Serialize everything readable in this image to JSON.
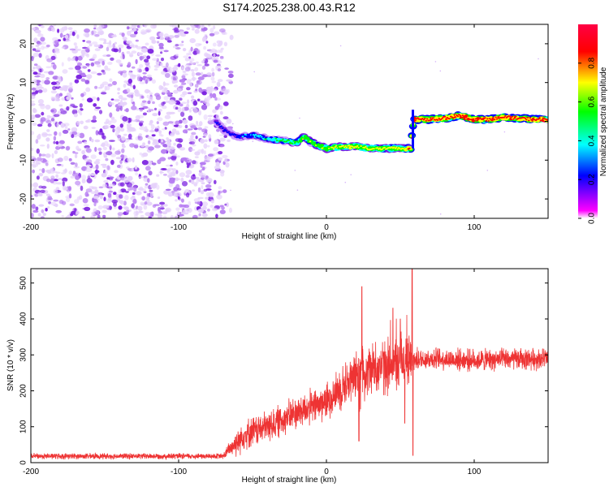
{
  "title": "S174.2025.238.00.43.R12",
  "colors": {
    "snr_line": "#ee3333",
    "frame": "#000000",
    "scatter": "#7a1fe0"
  },
  "chart_data": [
    {
      "type": "heatmap",
      "xlabel": "Height of straight line (km)",
      "ylabel": "Frequency (Hz)",
      "xlim": [
        -200,
        150
      ],
      "ylim": [
        -25,
        25
      ],
      "xticks": [
        -200,
        -100,
        0,
        100
      ],
      "yticks": [
        -20,
        -10,
        0,
        10,
        20
      ],
      "colorbar": {
        "label": "Normalized spectral amplitude",
        "ticks": [
          "0.0",
          "0.2",
          "0.4",
          "0.6",
          "0.8"
        ],
        "range": [
          0,
          1
        ],
        "colormap": [
          "#ffffff",
          "#ff00ff",
          "#0000ff",
          "#00ffff",
          "#00ff00",
          "#ffff00",
          "#ff0000",
          "#ff0044"
        ]
      },
      "noise_region": {
        "x_range": [
          -200,
          -70
        ],
        "amplitude": "low"
      },
      "tone_track": [
        {
          "x": -75,
          "y": 0
        },
        {
          "x": -70,
          "y": -2
        },
        {
          "x": -60,
          "y": -4
        },
        {
          "x": -50,
          "y": -3.5
        },
        {
          "x": -40,
          "y": -4.5
        },
        {
          "x": -30,
          "y": -5
        },
        {
          "x": -20,
          "y": -5.5
        },
        {
          "x": -15,
          "y": -4
        },
        {
          "x": -10,
          "y": -5.5
        },
        {
          "x": 0,
          "y": -7
        },
        {
          "x": 10,
          "y": -6.5
        },
        {
          "x": 20,
          "y": -6.5
        },
        {
          "x": 30,
          "y": -7
        },
        {
          "x": 40,
          "y": -7
        },
        {
          "x": 50,
          "y": -7
        },
        {
          "x": 57,
          "y": -7
        },
        {
          "x": 59,
          "y": 0.5
        },
        {
          "x": 70,
          "y": 0.5
        },
        {
          "x": 80,
          "y": 0.8
        },
        {
          "x": 90,
          "y": 1.5
        },
        {
          "x": 100,
          "y": 0.5
        },
        {
          "x": 110,
          "y": 0.5
        },
        {
          "x": 120,
          "y": 1
        },
        {
          "x": 130,
          "y": 0.8
        },
        {
          "x": 140,
          "y": 0.5
        },
        {
          "x": 150,
          "y": 0.5
        }
      ],
      "tone_amplitude": [
        {
          "x": -75,
          "a": 0.3
        },
        {
          "x": -20,
          "a": 0.7
        },
        {
          "x": 10,
          "a": 0.8
        },
        {
          "x": 50,
          "a": 0.8
        },
        {
          "x": 60,
          "a": 0.95
        },
        {
          "x": 150,
          "a": 0.95
        }
      ]
    },
    {
      "type": "line",
      "xlabel": "Height of straight line (km)",
      "ylabel": "SNR (10 * v/v)",
      "xlim": [
        -200,
        150
      ],
      "ylim": [
        0,
        540
      ],
      "xticks": [
        -200,
        -100,
        0,
        100
      ],
      "yticks": [
        0,
        100,
        200,
        300,
        400,
        500
      ],
      "trend": [
        {
          "x": -200,
          "y": 18
        },
        {
          "x": -70,
          "y": 18
        },
        {
          "x": -65,
          "y": 40
        },
        {
          "x": -55,
          "y": 80
        },
        {
          "x": -40,
          "y": 100
        },
        {
          "x": -20,
          "y": 140
        },
        {
          "x": 0,
          "y": 170
        },
        {
          "x": 10,
          "y": 210
        },
        {
          "x": 20,
          "y": 240
        },
        {
          "x": 25,
          "y": 260
        },
        {
          "x": 40,
          "y": 270
        },
        {
          "x": 55,
          "y": 285
        },
        {
          "x": 70,
          "y": 290
        },
        {
          "x": 100,
          "y": 285
        },
        {
          "x": 150,
          "y": 290
        }
      ],
      "noise_level": [
        {
          "x": -200,
          "y": 8
        },
        {
          "x": -70,
          "y": 8
        },
        {
          "x": -60,
          "y": 40
        },
        {
          "x": 0,
          "y": 50
        },
        {
          "x": 20,
          "y": 70
        },
        {
          "x": 55,
          "y": 80
        },
        {
          "x": 60,
          "y": 30
        },
        {
          "x": 150,
          "y": 30
        }
      ],
      "spikes": [
        {
          "x": 24,
          "y": 490
        },
        {
          "x": 28,
          "y": 280
        },
        {
          "x": 45,
          "y": 430
        },
        {
          "x": 50,
          "y": 400
        },
        {
          "x": 58,
          "y": 540
        },
        {
          "x": 58.5,
          "y": 20
        },
        {
          "x": 22,
          "y": 60
        },
        {
          "x": 53,
          "y": 110
        }
      ]
    }
  ]
}
